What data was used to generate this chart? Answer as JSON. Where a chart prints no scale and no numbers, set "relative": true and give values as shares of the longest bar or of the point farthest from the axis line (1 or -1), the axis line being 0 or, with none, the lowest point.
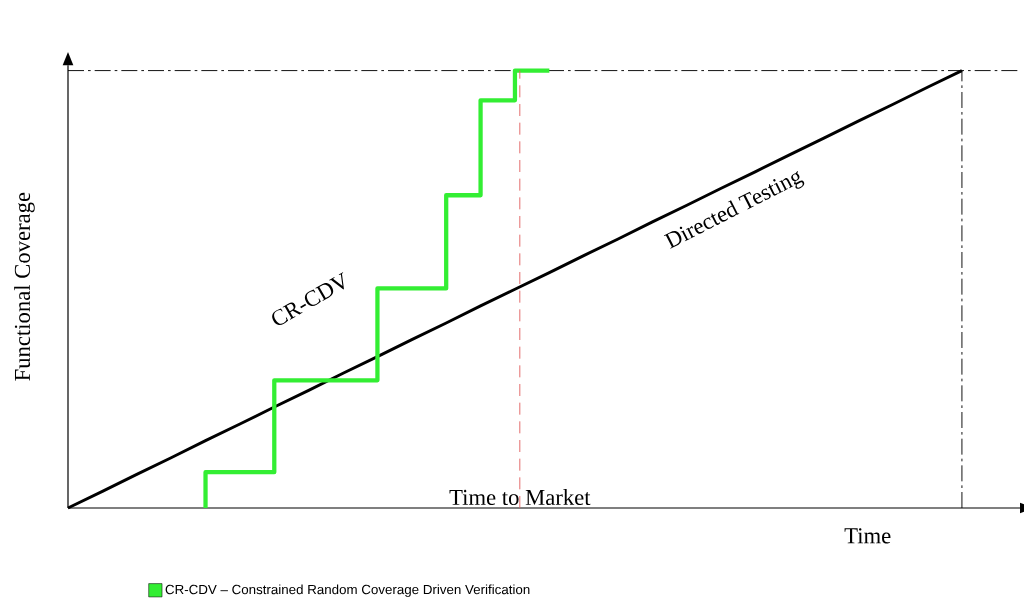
{
  "chart_data": {
    "type": "line",
    "relative": true,
    "xlabel": "Time",
    "ylabel": "Functional Coverage",
    "tick_labels": false,
    "legend": "bottom",
    "categories": [
      null,
      null,
      null,
      null,
      null,
      null,
      null,
      null,
      null,
      null,
      null,
      null,
      null,
      null,
      null,
      null,
      null,
      null,
      null,
      null,
      null,
      null,
      null,
      null,
      null,
      null,
      null
    ],
    "series": [
      {
        "color": "#000000",
        "values": [
          0,
          0.038,
          0.077,
          0.115,
          0.154,
          0.192,
          0.231,
          0.269,
          0.308,
          0.346,
          0.385,
          0.423,
          0.462,
          0.5,
          0.538,
          0.577,
          0.615,
          0.654,
          0.692,
          0.731,
          0.769,
          0.808,
          0.846,
          0.885,
          0.923,
          0.962,
          1
        ]
      },
      {
        "type": "step",
        "name": "CR-CDV – Constrained Random Coverage Driven Verification",
        "color": "#33ee33",
        "values": [
          null,
          null,
          null,
          null,
          0,
          0.082,
          0.082,
          0.292,
          0.292,
          0.292,
          0.502,
          0.502,
          0.715,
          0.932,
          1,
          null,
          null,
          null,
          null,
          null,
          null,
          null,
          null,
          null,
          null,
          null,
          null
        ]
      }
    ],
    "ref_lines": [
      {
        "axis": "y",
        "value": 1,
        "label": null,
        "color": "#000000",
        "line_style": "dashdot"
      }
    ],
    "annotations": [
      "CR-CDV",
      "Directed Testing",
      "Time to Market"
    ]
  }
}
